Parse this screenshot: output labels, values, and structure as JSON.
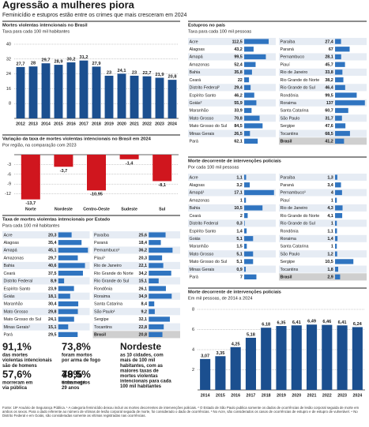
{
  "header": {
    "title": "Agressão a mulheres piora",
    "subtitle": "Feminicídio e estupros estão entre os crimes que mais cresceram em 2024"
  },
  "chart_data": [
    {
      "type": "bar",
      "title": "Mortes violentas intencionais no Brasil",
      "subtitle": "Taxa para cada 100 mil habitantes",
      "categories": [
        "2012",
        "2013",
        "2014",
        "2015",
        "2016",
        "2017",
        "2018",
        "2019",
        "2020",
        "2021",
        "2022",
        "2023",
        "2024"
      ],
      "values": [
        27.7,
        28,
        29.7,
        28.9,
        30.2,
        31.2,
        27.9,
        23,
        24.1,
        23,
        22.7,
        21.9,
        20.8
      ],
      "value_labels": [
        "27,7",
        "28",
        "29,7",
        "28,9",
        "30,2",
        "31,2",
        "27,9",
        "23",
        "24,1",
        "23",
        "22,7",
        "21,9",
        "20,8"
      ],
      "color": "#1b4f8f",
      "ylim": [
        0,
        40
      ],
      "yticks": [
        8,
        16,
        24,
        32,
        40
      ],
      "grid": true
    },
    {
      "type": "bar",
      "title": "Variação da taxa de mortes violentas intencionais no Brasil em 2024",
      "subtitle": "Por região, na comparação com 2023",
      "categories": [
        "Norte",
        "Nordeste",
        "Centro-Oeste",
        "Sudeste",
        "Sul"
      ],
      "values": [
        -13.7,
        -3.7,
        -10.95,
        -1.4,
        -8.1
      ],
      "value_labels": [
        "-13,7",
        "-3,7",
        "-10,95",
        "-1,4",
        "-8,1"
      ],
      "color": "#d0161e",
      "ylim": [
        -15,
        0
      ],
      "yticks": [
        -3,
        -6,
        -9,
        -12
      ],
      "grid": true
    },
    {
      "type": "hbar",
      "title": "Taxa de mortes violentas intencionais por Estado",
      "subtitle": "Para cada 100 mil habitantes",
      "categories": [
        "Acre",
        "Alagoas",
        "Amapá",
        "Amazonas",
        "Bahia",
        "Ceará",
        "Distrito Federal",
        "Espírito Santo",
        "Goiás",
        "Maranhão",
        "Mato Grosso",
        "Mato Grosso do Sul",
        "Minas Gerais¹",
        "Pará",
        "Paraíba",
        "Paraná",
        "Pernambuco¹",
        "Piauí¹",
        "Rio de Janeiro",
        "Rio Grande do Norte",
        "Rio Grande do Sul",
        "Rondônia",
        "Roraima",
        "Santa Catarina",
        "São Paulo¹",
        "Sergipe",
        "Tocantins",
        "Brasil"
      ],
      "values": [
        20.3,
        35.4,
        45.1,
        29.7,
        40.6,
        37.5,
        8.9,
        23.9,
        18.1,
        30.4,
        29.8,
        24.1,
        15.1,
        29.5,
        25.6,
        18.4,
        36.2,
        20.3,
        22.1,
        34.2,
        15.1,
        26.1,
        34.9,
        8.4,
        9.2,
        32.1,
        22.8,
        20.8
      ],
      "value_labels": [
        "20,3",
        "35,4",
        "45,1",
        "29,7",
        "40,6",
        "37,5",
        "8,9",
        "23,9",
        "18,1",
        "30,4",
        "29,8",
        "24,1",
        "15,1",
        "29,5",
        "25,6",
        "18,4",
        "36,2",
        "20,3",
        "22,1",
        "34,2",
        "15,1",
        "26,1",
        "34,9",
        "8,4",
        "9,2",
        "32,1",
        "22,8",
        "20,8"
      ],
      "color": "#2f74c0"
    },
    {
      "type": "hbar",
      "title": "Estupros no país",
      "subtitle": "Taxa para cada 100 mil pessoas",
      "categories": [
        "Acre",
        "Alagoas",
        "Amapá",
        "Amazonas",
        "Bahia",
        "Ceará",
        "Distrito Federal²",
        "Espírito Santo",
        "Goiás²",
        "Maranhão",
        "Mato Grosso",
        "Mato Grosso do Sul",
        "Minas Gerais",
        "Pará",
        "Paraíba",
        "Paraná",
        "Pernambuco",
        "Piauí",
        "Rio de Janeiro",
        "Rio Grande do Norte",
        "Rio Grande do Sul",
        "Rondônia",
        "Roraima",
        "Santa Catarina",
        "São Paulo",
        "Sergipe",
        "Tocantins",
        "Brasil"
      ],
      "values": [
        112.5,
        43.2,
        99.5,
        52.4,
        35.8,
        22,
        29.4,
        46.2,
        55.9,
        33.9,
        70.8,
        84.5,
        26.5,
        62.1,
        27.4,
        67,
        28.1,
        45.7,
        33.8,
        38.2,
        46.4,
        99.5,
        137,
        60.7,
        31.7,
        47.6,
        68.5,
        41.2
      ],
      "value_labels": [
        "112,5",
        "43,2",
        "99,5",
        "52,4",
        "35,8",
        "22",
        "29,4",
        "46,2",
        "55,9",
        "33,9",
        "70,8",
        "84,5",
        "26,5",
        "62,1",
        "27,4",
        "67",
        "28,1",
        "45,7",
        "33,8",
        "38,2",
        "46,4",
        "99,5",
        "137",
        "60,7",
        "31,7",
        "47,6",
        "68,5",
        "41,2"
      ],
      "color": "#2f74c0"
    },
    {
      "type": "hbar",
      "title": "Morte decorrente de intervenções policiais",
      "subtitle": "Por cada 100 mil pessoas",
      "categories": [
        "Acre",
        "Alagoas",
        "Amapá¹",
        "Amazonas",
        "Bahia",
        "Ceará",
        "Distrito Federal",
        "Espírito Santo",
        "Goiás",
        "Maranhão",
        "Mato Grosso",
        "Mato Grosso do Sul",
        "Minas Gerais",
        "Pará",
        "Paraíba",
        "Paraná",
        "Pernambuco¹",
        "Piauí",
        "Rio de Janeiro",
        "Rio Grande do Norte",
        "Rio Grande do Sul",
        "Rondônia",
        "Roraima",
        "Santa Catarina",
        "São Paulo",
        "Sergipe",
        "Tocantins",
        "Brasil"
      ],
      "values": [
        1.1,
        3.2,
        17.1,
        1,
        10.5,
        2,
        0.3,
        1.4,
        5.1,
        1.5,
        5.1,
        5.1,
        0.9,
        7,
        1.3,
        3.4,
        4,
        1,
        4.3,
        4.1,
        1,
        1.1,
        1.4,
        1,
        1.2,
        10.5,
        1.8,
        2.9
      ],
      "value_labels": [
        "1,1",
        "3,2",
        "17,1",
        "1",
        "10,5",
        "2",
        "0,3",
        "1,4",
        "5,1",
        "1,5",
        "5,1",
        "5,1",
        "0,9",
        "7",
        "1,3",
        "3,4",
        "4",
        "1",
        "4,3",
        "4,1",
        "1",
        "1,1",
        "1,4",
        "1",
        "1,2",
        "10,5",
        "1,8",
        "2,9"
      ],
      "color": "#2f74c0"
    },
    {
      "type": "bar",
      "title": "Morte decorrente de intervenções policiais",
      "subtitle": "Em mil pessoas, de 2014 a 2024",
      "categories": [
        "2014",
        "2015",
        "2016",
        "2017",
        "2018",
        "2019",
        "2020",
        "2021",
        "2022",
        "2023",
        "2024"
      ],
      "values": [
        3.07,
        3.35,
        4.25,
        5.18,
        6.18,
        6.35,
        6.41,
        6.49,
        6.46,
        6.41,
        6.24
      ],
      "value_labels": [
        "3,07",
        "3,35",
        "4,25",
        "5,18",
        "6,18",
        "6,35",
        "6,41",
        "6,49",
        "6,46",
        "6,41",
        "6,24"
      ],
      "color": "#1b4f8f",
      "ylim": [
        0,
        8
      ],
      "yticks": [
        2,
        4,
        6,
        8
      ],
      "grid": true
    }
  ],
  "stats": [
    {
      "value": "91,1%",
      "lines": [
        "das mortes",
        "violentas intencionais",
        "são de homens"
      ]
    },
    {
      "value": "73,8%",
      "lines": [
        "foram mortos",
        "por arma de fogo"
      ]
    },
    {
      "value": "Nordeste",
      "lines": [
        "as 10 cidades, com",
        "mais de 100 mil",
        "habitantes, com as",
        "maiores taxas de",
        "mortes violentas",
        "intencionais para cada",
        "100 mil habitantes"
      ]
    },
    {
      "value": "57,6%",
      "lines": [
        "morreram em",
        "via pública"
      ]
    },
    {
      "value": "48,5%",
      "lines": [
        "tinham até",
        "29 anos"
      ]
    },
    {
      "value": "79%",
      "lines": [
        "eram negros"
      ]
    }
  ],
  "footer": "Fonte: 19º Anuário de Segurança Pública. ¹ A categoria feminicídio deixou incluir as mortes decorrentes de intervenções policiais. ² O Estado de São Paulo publica somente os dados de ocorrências de lesão corporal seguida de morte em ambos os sexos. Para o dado referente ao número de vítimas de lesão corporal seguida de morte, foi considerado o dado de ocorrências. ³ No Acre, são considerados os casos de ocorrências de estupro e de estupro de vulnerável. ⁴ No Distrito Federal e em Goiás, são consideradas somente as vítimas registradas nas ocorrências."
}
